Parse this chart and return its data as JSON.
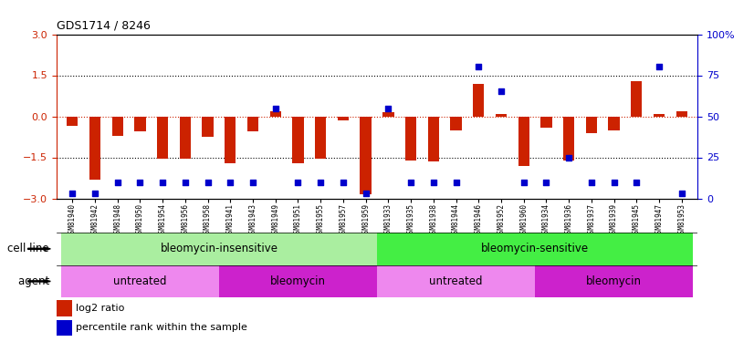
{
  "title": "GDS1714 / 8246",
  "samples": [
    "GSM81940",
    "GSM81942",
    "GSM81948",
    "GSM81950",
    "GSM81954",
    "GSM81956",
    "GSM81958",
    "GSM81941",
    "GSM81943",
    "GSM81949",
    "GSM81951",
    "GSM81955",
    "GSM81957",
    "GSM81959",
    "GSM81933",
    "GSM81935",
    "GSM81938",
    "GSM81944",
    "GSM81946",
    "GSM81952",
    "GSM81960",
    "GSM81934",
    "GSM81936",
    "GSM81937",
    "GSM81939",
    "GSM81945",
    "GSM81947",
    "GSM81953"
  ],
  "log2_ratio": [
    -0.35,
    -2.3,
    -0.7,
    -0.55,
    -1.55,
    -1.55,
    -0.75,
    -1.7,
    -0.55,
    0.2,
    -1.7,
    -1.55,
    -0.15,
    -2.85,
    0.15,
    -1.6,
    -1.65,
    -0.5,
    1.2,
    0.1,
    -1.8,
    -0.4,
    -1.6,
    -0.6,
    -0.5,
    1.3,
    0.1,
    0.2
  ],
  "percentile": [
    3,
    3,
    10,
    10,
    10,
    10,
    10,
    10,
    10,
    55,
    10,
    10,
    10,
    3,
    55,
    10,
    10,
    10,
    80,
    65,
    10,
    10,
    25,
    10,
    10,
    10,
    80,
    3
  ],
  "ylim_left": [
    -3,
    3
  ],
  "ylim_right": [
    0,
    100
  ],
  "bar_color": "#cc2200",
  "dot_color": "#0000cc",
  "hline0_color": "#cc2200",
  "hline15_color": "black",
  "yticks_left": [
    -3,
    -1.5,
    0,
    1.5,
    3
  ],
  "yticks_right": [
    0,
    25,
    50,
    75,
    100
  ],
  "ytick_labels_right": [
    "0",
    "25",
    "50",
    "75",
    "100%"
  ],
  "cell_line_groups": [
    {
      "label": "bleomycin-insensitive",
      "start": 0,
      "end": 13,
      "color": "#aaeea0"
    },
    {
      "label": "bleomycin-sensitive",
      "start": 14,
      "end": 27,
      "color": "#44ee44"
    }
  ],
  "agent_groups": [
    {
      "label": "untreated",
      "start": 0,
      "end": 6,
      "color": "#ee88ee"
    },
    {
      "label": "bleomycin",
      "start": 7,
      "end": 13,
      "color": "#cc22cc"
    },
    {
      "label": "untreated",
      "start": 14,
      "end": 20,
      "color": "#ee88ee"
    },
    {
      "label": "bleomycin",
      "start": 21,
      "end": 27,
      "color": "#cc22cc"
    }
  ],
  "legend_log2_color": "#cc2200",
  "legend_pct_color": "#0000cc",
  "legend_log2_label": "log2 ratio",
  "legend_pct_label": "percentile rank within the sample",
  "cell_line_label": "cell line",
  "agent_label": "agent",
  "bar_width": 0.5
}
